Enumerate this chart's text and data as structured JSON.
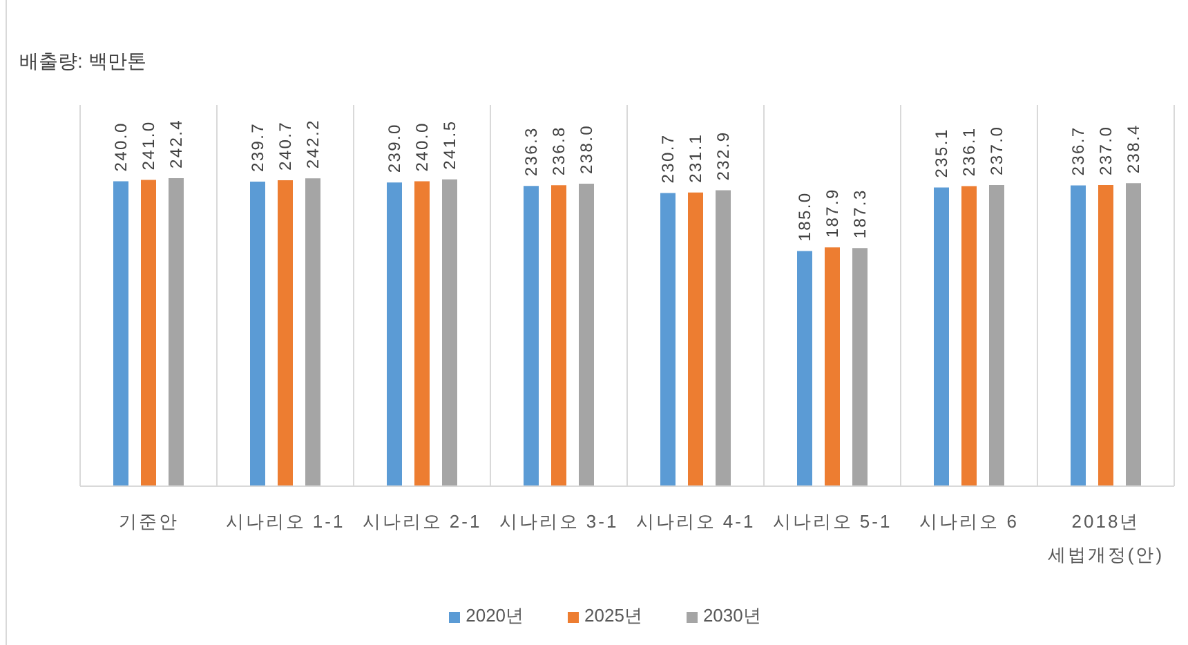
{
  "chart_data": {
    "type": "bar",
    "ylabel": "배출량: 백만톤",
    "categories": [
      "기준안",
      "시나리오 1-1",
      "시나리오 2-1",
      "시나리오 3-1",
      "시나리오 4-1",
      "시나리오 5-1",
      "시나리오 6",
      "2018년\n세법개정(안)"
    ],
    "series": [
      {
        "name": "2020년",
        "color": "#5b9bd5",
        "values": [
          240.0,
          239.7,
          239.0,
          236.3,
          230.7,
          185.0,
          235.1,
          236.7
        ],
        "value_labels": [
          "240.0",
          "239.7",
          "239.0",
          "236.3",
          "230.7",
          "185.0",
          "235.1",
          "236.7"
        ]
      },
      {
        "name": "2025년",
        "color": "#ed7d31",
        "values": [
          241.0,
          240.7,
          240.0,
          236.8,
          231.1,
          187.9,
          236.1,
          237.0
        ],
        "value_labels": [
          "241.0",
          "240.7",
          "240.0",
          "236.8",
          "231.1",
          "187.9",
          "236.1",
          "237.0"
        ]
      },
      {
        "name": "2030년",
        "color": "#a5a5a5",
        "values": [
          242.4,
          242.2,
          241.5,
          238.0,
          232.9,
          187.3,
          237.0,
          238.4
        ],
        "value_labels": [
          "242.4",
          "242.2",
          "241.5",
          "238.0",
          "232.9",
          "187.3",
          "237.0",
          "238.4"
        ]
      }
    ],
    "ylim": [
      0,
      300
    ],
    "grid": "x",
    "legend": "bottom",
    "tick_labels": "x"
  }
}
